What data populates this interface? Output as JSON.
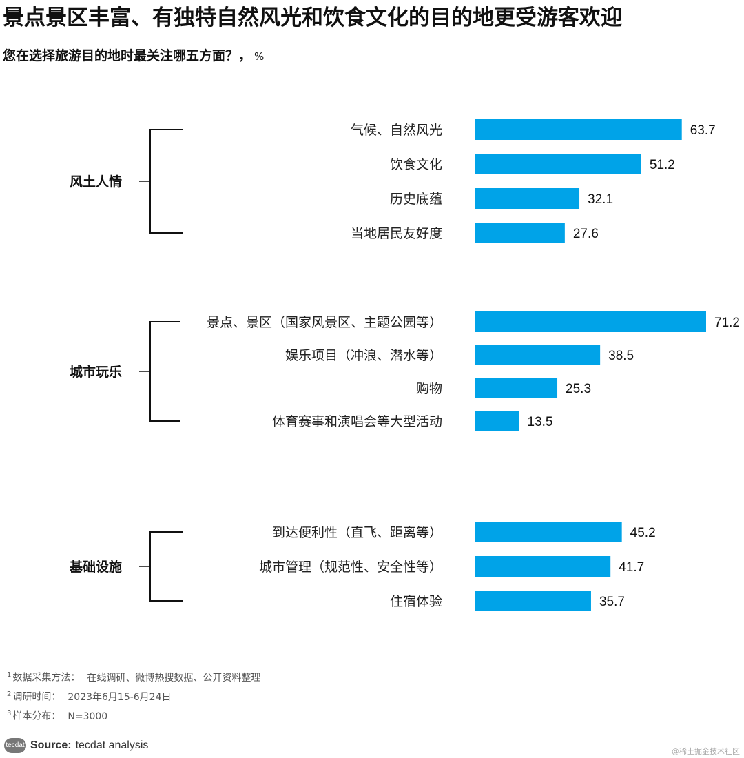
{
  "chart_data": {
    "type": "bar",
    "orientation": "horizontal",
    "title": "景点景区丰富、有独特自然风光和饮食文化的目的地更受游客欢迎",
    "subtitle": "您在选择旅游目的地时最关注哪五方面？，",
    "unit": "%",
    "bar_color": "#00a3e8",
    "groups": [
      {
        "name": "风土人情",
        "items": [
          {
            "label": "气候、自然风光",
            "value": 63.7
          },
          {
            "label": "饮食文化",
            "value": 51.2
          },
          {
            "label": "历史底蕴",
            "value": 32.1
          },
          {
            "label": "当地居民友好度",
            "value": 27.6
          }
        ]
      },
      {
        "name": "城市玩乐",
        "items": [
          {
            "label": "景点、景区（国家风景区、主题公园等）",
            "value": 71.2
          },
          {
            "label": "娱乐项目（冲浪、潜水等）",
            "value": 38.5
          },
          {
            "label": "购物",
            "value": 25.3
          },
          {
            "label": "体育赛事和演唱会等大型活动",
            "value": 13.5
          }
        ]
      },
      {
        "name": "基础设施",
        "items": [
          {
            "label": "到达便利性（直飞、距离等）",
            "value": 45.2
          },
          {
            "label": "城市管理（规范性、安全性等）",
            "value": 41.7
          },
          {
            "label": "住宿体验",
            "value": 35.7
          }
        ]
      }
    ]
  },
  "notes": [
    {
      "mark": "1",
      "label": "数据采集方法：",
      "text": "在线调研、微博热搜数据、公开资料整理"
    },
    {
      "mark": "2",
      "label": "调研时间：",
      "text": "2023年6月15-6月24日"
    },
    {
      "mark": "3",
      "label": "样本分布：",
      "text": "N=3000"
    }
  ],
  "source": {
    "logo_text": "tecdat",
    "label": "Source:",
    "text": "tecdat analysis"
  },
  "watermark": "@稀土掘金技术社区"
}
